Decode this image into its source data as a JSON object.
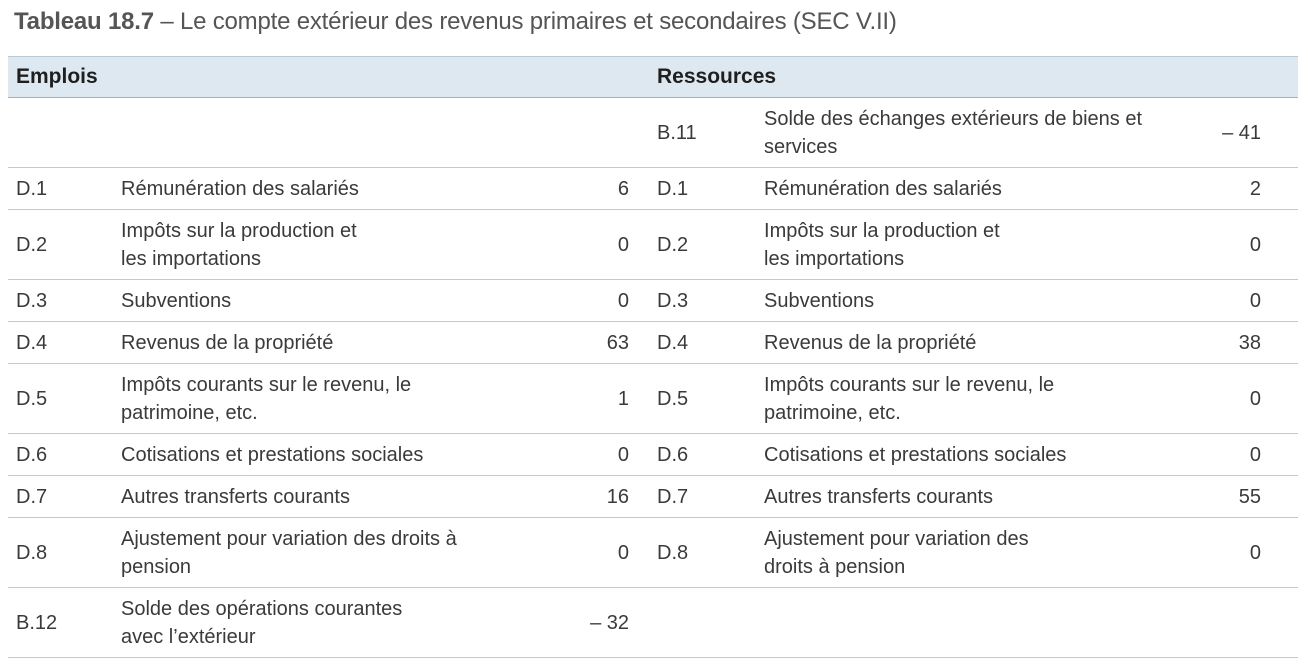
{
  "caption": {
    "number": "Tableau 18.7",
    "title": " – Le compte extérieur des revenus primaires et secondaires (SEC V.II)"
  },
  "headers": {
    "uses": "Emplois",
    "resources": "Ressources"
  },
  "rows": [
    {
      "use_code": "",
      "use_label": "",
      "use_value": "",
      "res_code": "B.11",
      "res_label": "Solde des échanges extérieurs de biens et services",
      "res_value": "– 41"
    },
    {
      "use_code": "D.1",
      "use_label": "Rémunération des salariés",
      "use_value": "6",
      "res_code": "D.1",
      "res_label": "Rémunération des salariés",
      "res_value": "2"
    },
    {
      "use_code": "D.2",
      "use_label": "Impôts sur la production et les importations",
      "use_value": "0",
      "res_code": "D.2",
      "res_label": "Impôts sur la production et les importations",
      "res_value": "0"
    },
    {
      "use_code": "D.3",
      "use_label": "Subventions",
      "use_value": "0",
      "res_code": "D.3",
      "res_label": "Subventions",
      "res_value": "0"
    },
    {
      "use_code": "D.4",
      "use_label": "Revenus de la propriété",
      "use_value": "63",
      "res_code": "D.4",
      "res_label": "Revenus de la propriété",
      "res_value": "38"
    },
    {
      "use_code": "D.5",
      "use_label": "Impôts courants sur le revenu, le patrimoine, etc.",
      "use_value": "1",
      "res_code": "D.5",
      "res_label": "Impôts courants sur le revenu, le patrimoine, etc.",
      "res_value": "0"
    },
    {
      "use_code": "D.6",
      "use_label": "Cotisations et prestations sociales",
      "use_value": "0",
      "res_code": "D.6",
      "res_label": "Cotisations et prestations sociales",
      "res_value": "0"
    },
    {
      "use_code": "D.7",
      "use_label": "Autres transferts courants",
      "use_value": "16",
      "res_code": "D.7",
      "res_label": "Autres transferts courants",
      "res_value": "55"
    },
    {
      "use_code": "D.8",
      "use_label": "Ajustement pour variation des droits à pension",
      "use_value": "0",
      "res_code": "D.8",
      "res_label": "Ajustement pour variation des droits à pension",
      "res_value": "0"
    },
    {
      "use_code": "B.12",
      "use_label": "Solde des opérations courantes avec l’extérieur",
      "use_value": "– 32",
      "res_code": "",
      "res_label": "",
      "res_value": ""
    }
  ]
}
